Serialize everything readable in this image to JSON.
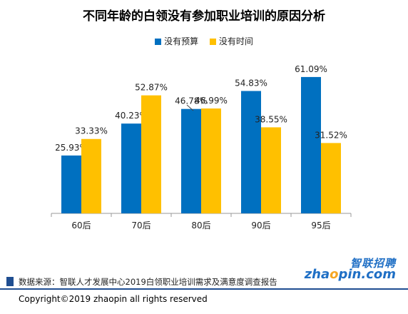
{
  "chart_data": {
    "type": "bar",
    "title": "不同年龄的白领没有参加职业培训的原因分析",
    "categories": [
      "60后",
      "70后",
      "80后",
      "90后",
      "95后"
    ],
    "series": [
      {
        "name": "没有预算",
        "values": [
          25.93,
          40.23,
          46.78,
          54.83,
          61.09
        ],
        "labels": [
          "25.93%",
          "40.23%",
          "46.78%",
          "54.83%",
          "61.09%"
        ],
        "color": "#0070C0"
      },
      {
        "name": "没有时间",
        "values": [
          33.33,
          52.87,
          46.99,
          38.55,
          31.52
        ],
        "labels": [
          "33.33%",
          "52.87%",
          "46.99%",
          "38.55%",
          "31.52%"
        ],
        "color": "#FFC000"
      }
    ],
    "ylim": [
      0,
      70
    ],
    "grid": false,
    "legend": "top-center"
  },
  "source": "数据来源：智联人才发展中心2019白领职业培训需求及满意度调查报告",
  "logo": {
    "cn": "智联招聘",
    "en_a": "zha",
    "en_dot": "o",
    "en_b": "pin.com"
  },
  "copyright": "Copyright©2019 zhaopin all rights reserved"
}
